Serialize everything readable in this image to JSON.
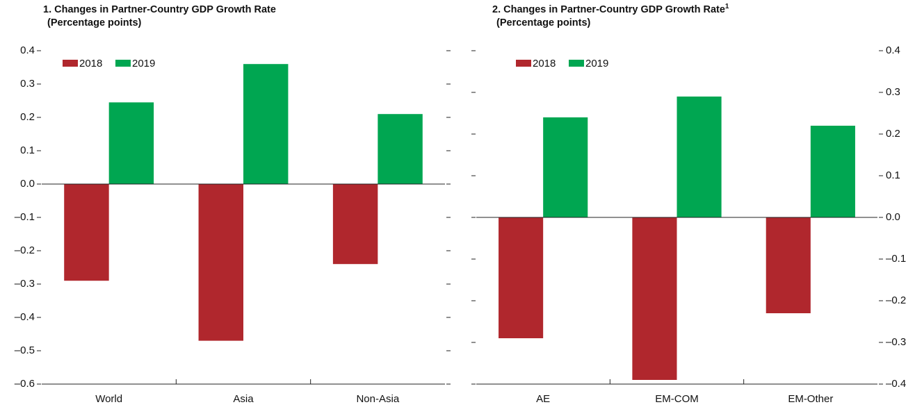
{
  "chart_data": [
    {
      "type": "bar",
      "title": "1. Changes in Partner-Country GDP Growth Rate",
      "subtitle": "(Percentage points)",
      "categories": [
        "World",
        "Asia",
        "Non-Asia"
      ],
      "series": [
        {
          "name": "2018",
          "color": "#b0272d",
          "values": [
            -0.29,
            -0.47,
            -0.24
          ]
        },
        {
          "name": "2019",
          "color": "#00a651",
          "values": [
            0.245,
            0.36,
            0.21
          ]
        }
      ],
      "ylim": [
        -0.6,
        0.4
      ],
      "yticks": [
        {
          "value": -0.6,
          "label": "–0.6"
        },
        {
          "value": -0.5,
          "label": "–0.5"
        },
        {
          "value": -0.4,
          "label": "–0.4"
        },
        {
          "value": -0.3,
          "label": "–0.3"
        },
        {
          "value": -0.2,
          "label": "–0.2"
        },
        {
          "value": -0.1,
          "label": "–0.1"
        },
        {
          "value": 0,
          "label": "0.0"
        },
        0.1,
        0.2,
        0.3,
        0.4
      ],
      "yaxis_side": "left"
    },
    {
      "type": "bar",
      "title": "2. Changes in Partner-Country GDP Growth Rate",
      "title_superscript": "1",
      "subtitle": "(Percentage points)",
      "categories": [
        "AE",
        "EM-COM",
        "EM-Other"
      ],
      "series": [
        {
          "name": "2018",
          "color": "#b0272d",
          "values": [
            -0.29,
            -0.39,
            -0.23
          ]
        },
        {
          "name": "2019",
          "color": "#00a651",
          "values": [
            0.24,
            0.29,
            0.22
          ]
        }
      ],
      "ylim": [
        -0.4,
        0.4
      ],
      "yticks": [
        {
          "value": -0.4,
          "label": "–0.4"
        },
        {
          "value": -0.3,
          "label": "–0.3"
        },
        {
          "value": -0.2,
          "label": "–0.2"
        },
        {
          "value": -0.1,
          "label": "–0.1"
        },
        {
          "value": 0,
          "label": "0.0"
        },
        0.1,
        0.2,
        0.3,
        0.4
      ],
      "yaxis_side": "right"
    }
  ]
}
